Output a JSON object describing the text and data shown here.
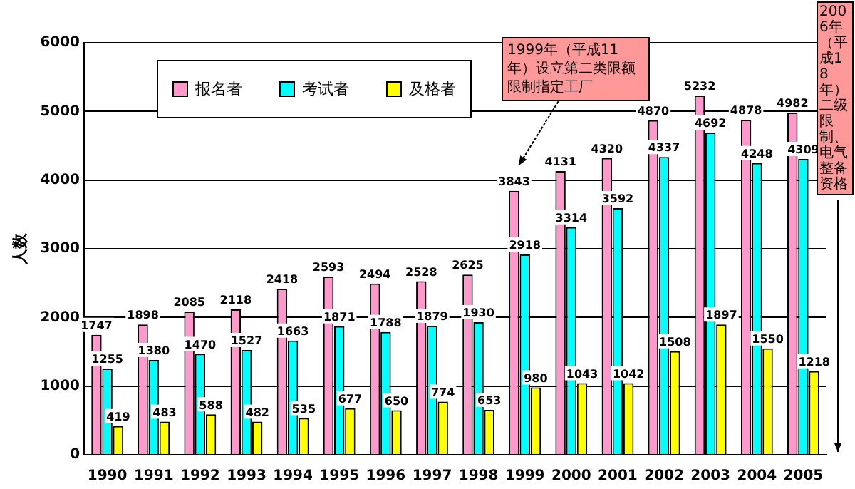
{
  "chart_data": {
    "type": "bar",
    "ylabel": "人数",
    "categories": [
      "1990",
      "1991",
      "1992",
      "1993",
      "1994",
      "1995",
      "1996",
      "1997",
      "1998",
      "1999",
      "2000",
      "2001",
      "2002",
      "2003",
      "2004",
      "2005"
    ],
    "series": [
      {
        "name": "报名者",
        "color": "#ff99cc",
        "values": [
          1747,
          1898,
          2085,
          2118,
          2418,
          2593,
          2494,
          2528,
          2625,
          3843,
          4131,
          4320,
          4870,
          5232,
          4878,
          4982
        ]
      },
      {
        "name": "考试者",
        "color": "#00ffff",
        "values": [
          1255,
          1380,
          1470,
          1527,
          1663,
          1871,
          1788,
          1879,
          1930,
          2918,
          3314,
          3592,
          4337,
          4692,
          4248,
          4309
        ]
      },
      {
        "name": "及格者",
        "color": "#ffff00",
        "values": [
          419,
          483,
          588,
          482,
          535,
          677,
          650,
          774,
          653,
          980,
          1043,
          1042,
          1508,
          1897,
          1550,
          1218
        ]
      }
    ],
    "ylim": [
      0,
      6000
    ],
    "yticks": [
      0,
      1000,
      2000,
      3000,
      4000,
      5000,
      6000
    ],
    "grid": "y",
    "legend": "top left",
    "data_labels": true,
    "annotations": [
      "1999年（平成11年）设立第二类限额限制指定工厂",
      "2006年（平成18年）二级限制、电气整备资格"
    ]
  }
}
